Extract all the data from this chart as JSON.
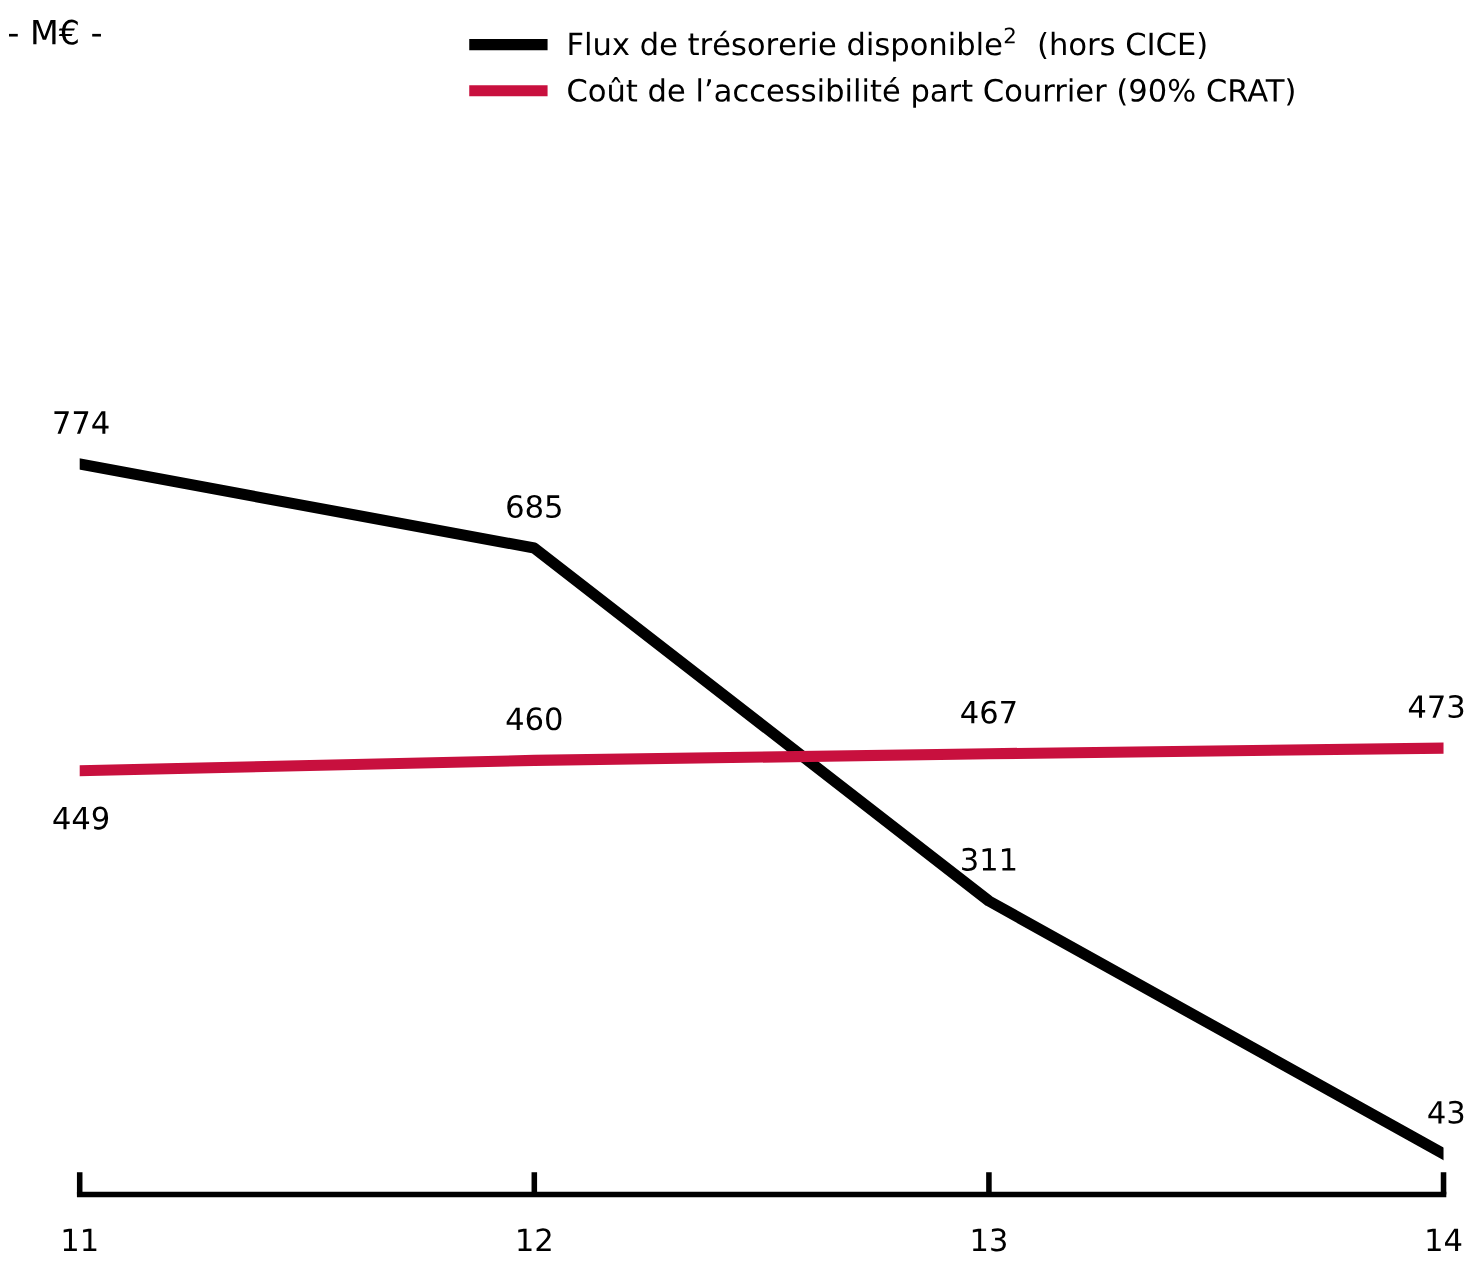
{
  "chart_data": {
    "type": "line",
    "categories": [
      "11",
      "12",
      "13",
      "14"
    ],
    "series": [
      {
        "name": "Flux de trésorerie disponible$^{2}$  (hors CICE)",
        "color": "#000000",
        "values": [
          774,
          685,
          311,
          43
        ]
      },
      {
        "name": "Coût de l’accessibilité part Courrier (90% CRAT)",
        "color": "#c8103e",
        "values": [
          449,
          460,
          467,
          473
        ]
      }
    ],
    "data_labels": true,
    "legend": "top",
    "grid": false,
    "marker": "none",
    "line_style": "solid",
    "annotations": [
      "- M€ -"
    ]
  }
}
